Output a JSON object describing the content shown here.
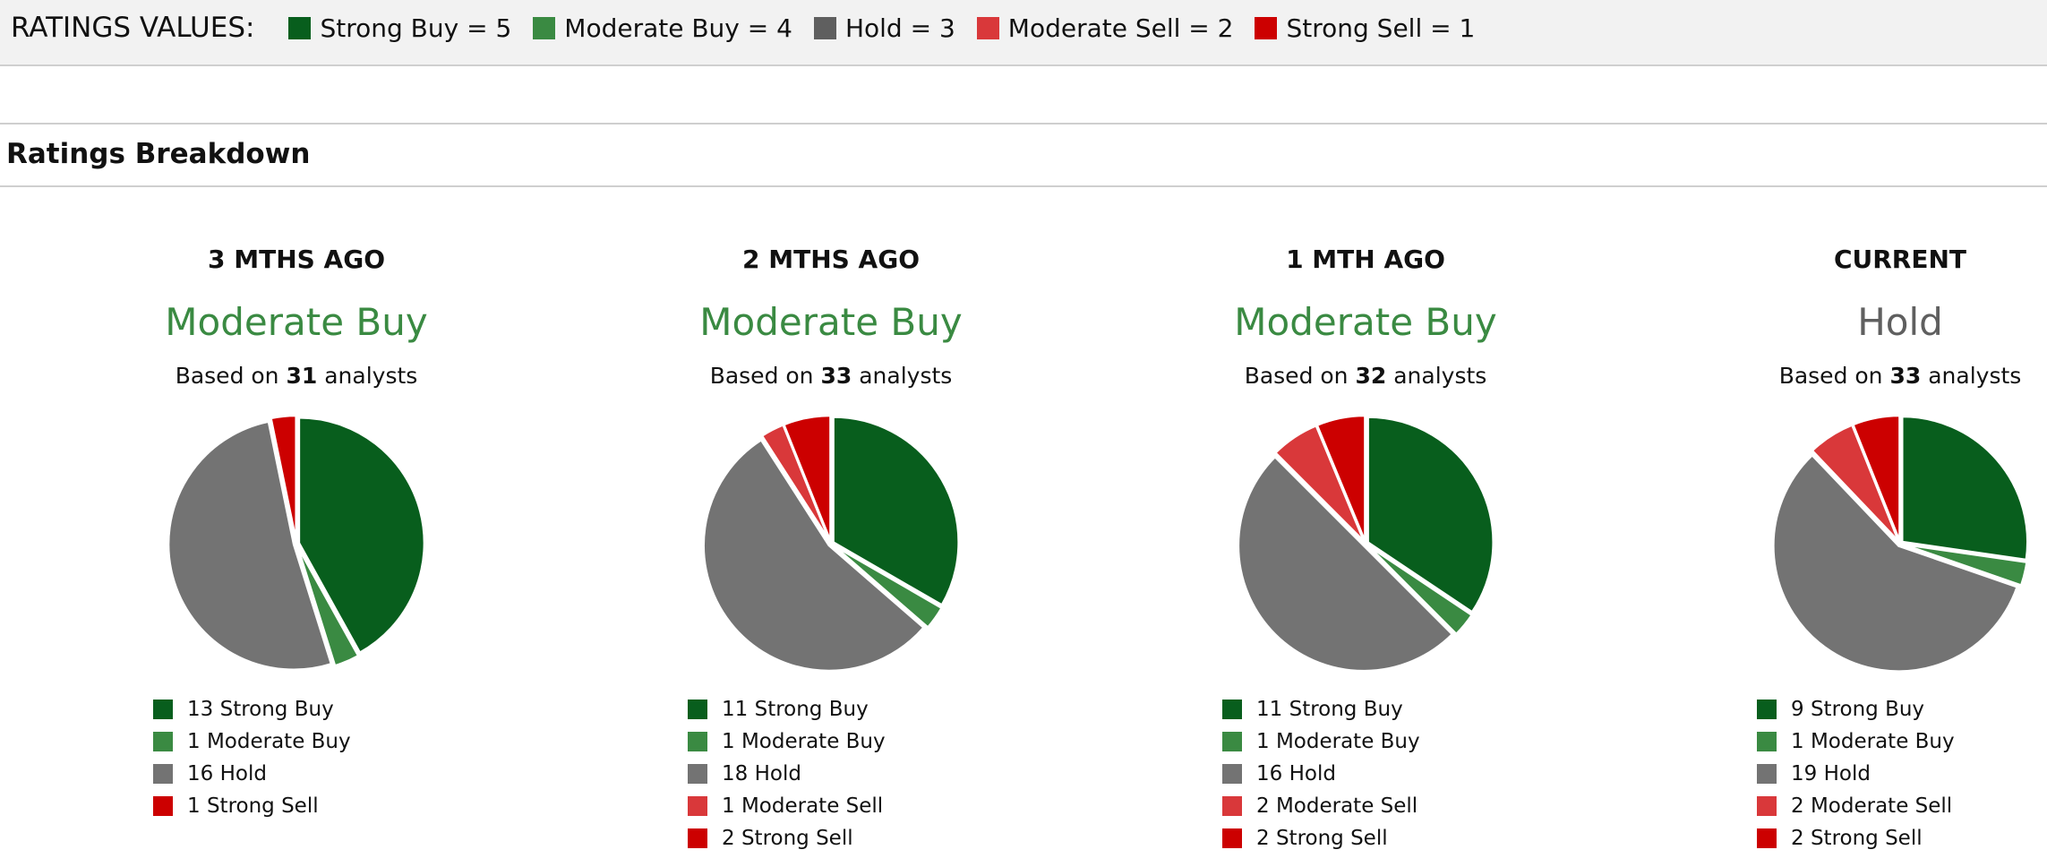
{
  "ratings_values": {
    "title": "RATINGS VALUES:",
    "items": [
      {
        "label": "Strong Buy = 5",
        "color": "#085e1d"
      },
      {
        "label": "Moderate Buy = 4",
        "color": "#3a8a42"
      },
      {
        "label": "Hold = 3",
        "color": "#5f5f5f"
      },
      {
        "label": "Moderate Sell = 2",
        "color": "#d9383a"
      },
      {
        "label": "Strong Sell = 1",
        "color": "#cc0000"
      }
    ]
  },
  "section_title": "Ratings Breakdown",
  "based_on_prefix": "Based on",
  "based_on_suffix": "analysts",
  "chart_data": [
    {
      "type": "pie",
      "title": "3 MTHS AGO",
      "consensus": "Moderate Buy",
      "consensus_color": "#3a8a42",
      "analysts": "31",
      "slices": [
        {
          "label": "Strong Buy",
          "value": 13,
          "color": "#085e1d"
        },
        {
          "label": "Moderate Buy",
          "value": 1,
          "color": "#3a8a42"
        },
        {
          "label": "Hold",
          "value": 16,
          "color": "#737373"
        },
        {
          "label": "Strong Sell",
          "value": 1,
          "color": "#cc0000"
        }
      ]
    },
    {
      "type": "pie",
      "title": "2 MTHS AGO",
      "consensus": "Moderate Buy",
      "consensus_color": "#3a8a42",
      "analysts": "33",
      "slices": [
        {
          "label": "Strong Buy",
          "value": 11,
          "color": "#085e1d"
        },
        {
          "label": "Moderate Buy",
          "value": 1,
          "color": "#3a8a42"
        },
        {
          "label": "Hold",
          "value": 18,
          "color": "#737373"
        },
        {
          "label": "Moderate Sell",
          "value": 1,
          "color": "#d9383a"
        },
        {
          "label": "Strong Sell",
          "value": 2,
          "color": "#cc0000"
        }
      ]
    },
    {
      "type": "pie",
      "title": "1 MTH AGO",
      "consensus": "Moderate Buy",
      "consensus_color": "#3a8a42",
      "analysts": "32",
      "slices": [
        {
          "label": "Strong Buy",
          "value": 11,
          "color": "#085e1d"
        },
        {
          "label": "Moderate Buy",
          "value": 1,
          "color": "#3a8a42"
        },
        {
          "label": "Hold",
          "value": 16,
          "color": "#737373"
        },
        {
          "label": "Moderate Sell",
          "value": 2,
          "color": "#d9383a"
        },
        {
          "label": "Strong Sell",
          "value": 2,
          "color": "#cc0000"
        }
      ]
    },
    {
      "type": "pie",
      "title": "CURRENT",
      "consensus": "Hold",
      "consensus_color": "#5f5f5f",
      "analysts": "33",
      "slices": [
        {
          "label": "Strong Buy",
          "value": 9,
          "color": "#085e1d"
        },
        {
          "label": "Moderate Buy",
          "value": 1,
          "color": "#3a8a42"
        },
        {
          "label": "Hold",
          "value": 19,
          "color": "#737373"
        },
        {
          "label": "Moderate Sell",
          "value": 2,
          "color": "#d9383a"
        },
        {
          "label": "Strong Sell",
          "value": 2,
          "color": "#cc0000"
        }
      ]
    }
  ]
}
